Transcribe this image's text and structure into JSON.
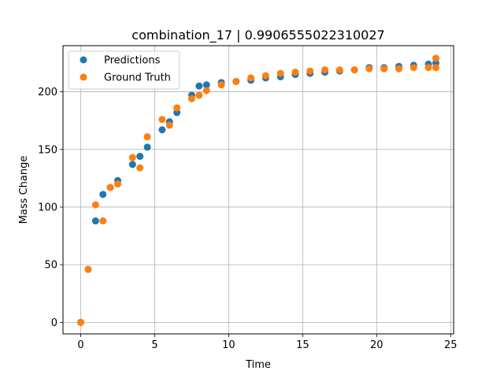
{
  "chart_data": {
    "type": "scatter",
    "title": "combination_17 | 0.9906555022310027",
    "xlabel": "Time",
    "ylabel": "Mass Change",
    "xlim": [
      -1.2,
      25.2
    ],
    "ylim": [
      -10,
      240
    ],
    "xticks": [
      0,
      5,
      10,
      15,
      20,
      25
    ],
    "yticks": [
      0,
      50,
      100,
      150,
      200
    ],
    "grid": true,
    "legend_position": "top-left",
    "series": [
      {
        "name": "Predictions",
        "color": "#1f77b4",
        "x": [
          0,
          0.5,
          1,
          1.5,
          2,
          2.5,
          3.5,
          4,
          4.5,
          5.5,
          6,
          6.5,
          7.5,
          8,
          8.5,
          9.5,
          10.5,
          11.5,
          12.5,
          13.5,
          14.5,
          15.5,
          16.5,
          17.5,
          18.5,
          19.5,
          20.5,
          21.5,
          22.5,
          23.5,
          24
        ],
        "y": [
          0,
          46,
          88,
          111,
          117,
          123,
          137,
          144,
          152,
          167,
          174,
          182,
          197,
          205,
          206,
          208,
          209,
          210,
          212,
          213,
          215,
          216,
          217,
          218,
          219,
          221,
          221,
          222,
          223,
          224,
          225
        ]
      },
      {
        "name": "Ground Truth",
        "color": "#ff7f0e",
        "x": [
          0,
          0.5,
          1,
          1.5,
          2,
          2.5,
          3.5,
          4,
          4.5,
          5.5,
          6,
          6.5,
          7.5,
          8,
          8.5,
          9.5,
          10.5,
          11.5,
          12.5,
          13.5,
          14.5,
          15.5,
          16.5,
          17.5,
          18.5,
          19.5,
          20.5,
          21.5,
          22.5,
          23.5,
          24,
          24
        ],
        "y": [
          0,
          46,
          102,
          88,
          117,
          120,
          143,
          134,
          161,
          176,
          171,
          186,
          194,
          197,
          201,
          206,
          209,
          212,
          214,
          216,
          217,
          218,
          219,
          219,
          219,
          220,
          220,
          220,
          221,
          221,
          221,
          229
        ]
      }
    ]
  }
}
